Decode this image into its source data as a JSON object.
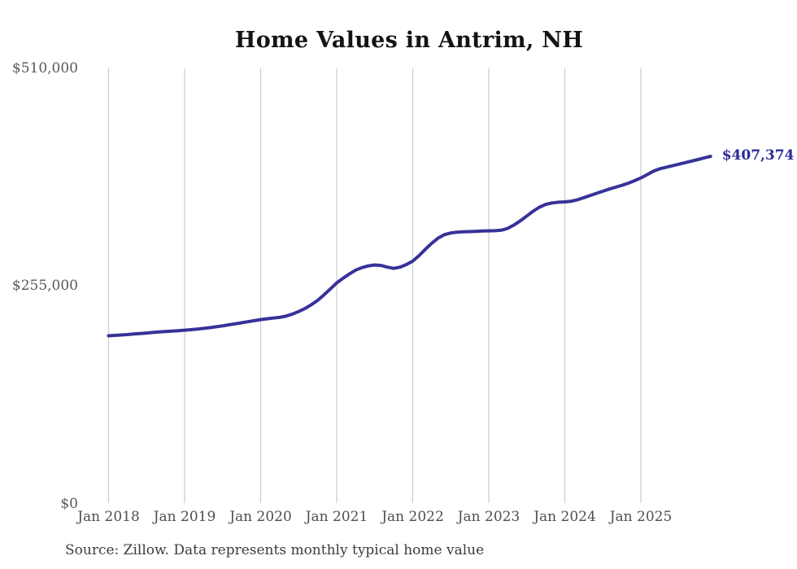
{
  "chart_data": {
    "type": "line",
    "title": "Home Values in Antrim, NH",
    "xlabel": "",
    "ylabel": "",
    "ylim": [
      0,
      510000
    ],
    "y_ticks": [
      {
        "label": "$510,000",
        "value": 510000
      },
      {
        "label": "$255,000",
        "value": 255000
      },
      {
        "label": "$0",
        "value": 0
      }
    ],
    "x_tick_labels": [
      "Jan 2018",
      "Jan 2019",
      "Jan 2020",
      "Jan 2021",
      "Jan 2022",
      "Jan 2023",
      "Jan 2024",
      "Jan 2025"
    ],
    "x_unit": "month",
    "start_month": "Jan 2018",
    "grid": "vertical-year-lines",
    "legend_position": "none",
    "end_label": "$407,374",
    "series": [
      {
        "name": "Monthly typical home value",
        "values": [
          197000,
          197500,
          198000,
          198500,
          199100,
          199700,
          200300,
          200900,
          201500,
          202000,
          202500,
          203000,
          203600,
          204200,
          204900,
          205700,
          206600,
          207600,
          208700,
          209900,
          211100,
          212300,
          213500,
          214800,
          216000,
          217000,
          217800,
          218600,
          220000,
          222500,
          225500,
          229000,
          233500,
          238500,
          245000,
          252000,
          259000,
          264500,
          269500,
          274000,
          277000,
          279000,
          280000,
          279500,
          277500,
          276000,
          277500,
          280500,
          284500,
          291000,
          298500,
          305500,
          311500,
          315500,
          317500,
          318500,
          319000,
          319200,
          319500,
          319800,
          320000,
          320200,
          320800,
          323000,
          327000,
          332000,
          337500,
          343000,
          347800,
          351000,
          352800,
          353600,
          354000,
          354800,
          356500,
          359000,
          361500,
          364000,
          366500,
          369000,
          371200,
          373400,
          375800,
          378800,
          382000,
          386000,
          390000,
          392800,
          394600,
          396400,
          398200,
          400000,
          401800,
          403600,
          405500,
          407374
        ]
      }
    ]
  },
  "footer": {
    "source_note": "Source: Zillow. Data represents monthly typical home value"
  },
  "colors": {
    "line": "#373299",
    "end_label": "#2c2a96",
    "gridline": "#cccccc",
    "axis_text": "#595959",
    "title_text": "#141414",
    "source_text": "#3c3c3c",
    "background": "#ffffff"
  }
}
